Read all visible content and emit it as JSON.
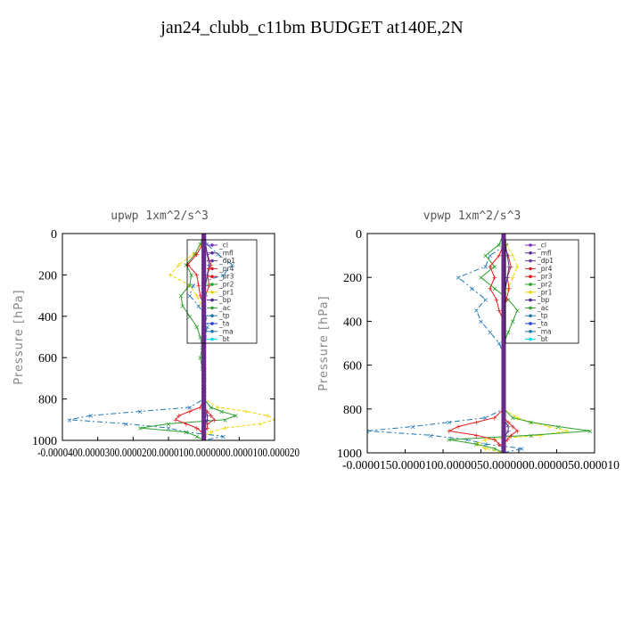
{
  "title": "jan24_clubb_c11bm  BUDGET at140E,2N",
  "chart_data": [
    {
      "type": "line",
      "title": "upwp   1xm^2/s^3",
      "ylabel": "Pressure [hPa]",
      "ylim": [
        1000,
        0
      ],
      "xlim": [
        -4e-05,
        2e-05
      ],
      "yticks": [
        "0",
        "200",
        "400",
        "600",
        "800",
        "1000"
      ],
      "xtick_text": "-0.0000400.0000300.0000200.0000100.0000000.0000100.000020",
      "grid": false,
      "legend_placement": "top-right",
      "legend": [
        "_cl",
        "_mfl",
        "_dp1",
        "_pr4",
        "_pr3",
        "_pr2",
        "_pr1",
        "_bp",
        "_ac",
        "_tp",
        "_ta",
        "_ma",
        "_bt"
      ],
      "pressure": [
        0,
        50,
        100,
        150,
        200,
        250,
        300,
        350,
        400,
        450,
        500,
        550,
        600,
        650,
        700,
        750,
        800,
        840,
        860,
        880,
        900,
        920,
        940,
        960,
        980,
        1000
      ],
      "series": [
        {
          "name": "_ma",
          "color": "#1f77b4",
          "values": [
            0,
            8e-07,
            4e-06,
            8e-06,
            5.5e-06,
            -3e-06,
            -4e-06,
            -1.5e-06,
            5e-07,
            1e-06,
            3e-07,
            0,
            0,
            0,
            0,
            0,
            0,
            -4e-06,
            -1.8e-05,
            -3.2e-05,
            -3.8e-05,
            -2.2e-05,
            -1e-05,
            -5e-06,
            5.5e-06,
            0
          ]
        },
        {
          "name": "_pr1",
          "color": "#e8d800",
          "values": [
            0,
            -5e-07,
            -3e-06,
            -7e-06,
            -9.5e-06,
            -4e-06,
            -2e-06,
            -5e-07,
            0,
            0,
            0,
            0,
            0,
            0,
            0,
            0,
            0,
            4e-06,
            1.2e-05,
            1.8e-05,
            2e-05,
            1.6e-05,
            6e-06,
            2e-06,
            0,
            0
          ]
        },
        {
          "name": "_pr2",
          "color": "#2ca02c",
          "values": [
            0,
            -1e-06,
            -2.5e-06,
            -5e-06,
            -3.5e-06,
            -4e-06,
            -6.5e-06,
            -6e-06,
            -4e-06,
            -2e-06,
            -1e-06,
            -5e-07,
            -1e-06,
            -5e-07,
            0,
            0,
            0,
            2e-06,
            5e-06,
            9e-06,
            6e-06,
            -1e-05,
            -1.8e-05,
            -5e-06,
            -2e-06,
            0
          ]
        },
        {
          "name": "_pr3",
          "color": "#e41a1c",
          "values": [
            0,
            -3e-07,
            -2e-06,
            -4.5e-06,
            -2e-06,
            -1.5e-06,
            -1e-06,
            0,
            0,
            0,
            0,
            0,
            0,
            0,
            0,
            0,
            0,
            -1e-06,
            -4e-06,
            -7e-06,
            -8e-06,
            -5e-06,
            -2e-06,
            -5e-07,
            0,
            0
          ]
        },
        {
          "name": "_pr4",
          "color": "#d62728",
          "values": [
            0,
            0,
            1e-06,
            2e-06,
            1e-06,
            1.5e-06,
            5e-07,
            0,
            0,
            0,
            0,
            0,
            0,
            0,
            0,
            0,
            0,
            0,
            1e-06,
            2e-06,
            3e-06,
            1e-06,
            1e-06,
            0,
            0,
            0
          ]
        },
        {
          "name": "_bp",
          "color": "#4b2a8c",
          "values": [
            0,
            5e-07,
            1e-06,
            1.5e-06,
            1e-06,
            5e-07,
            3e-07,
            0,
            0,
            0,
            0,
            0,
            0,
            0,
            0,
            0,
            0,
            0,
            5e-07,
            1e-06,
            1e-06,
            5e-07,
            0,
            0,
            0,
            0
          ]
        },
        {
          "name": "_cl",
          "color": "#7b2fbe",
          "values": [
            0,
            0,
            3e-07,
            0,
            0,
            0,
            0,
            0,
            0,
            0,
            0,
            0,
            0,
            0,
            0,
            0,
            0,
            0,
            0,
            0,
            0,
            0,
            0,
            0,
            0,
            0
          ]
        },
        {
          "name": "_bt",
          "color": "#00d8f0",
          "values": [
            0,
            0,
            0,
            0,
            0,
            0,
            0,
            0,
            0,
            0,
            0,
            0,
            0,
            0,
            0,
            0,
            0,
            0,
            0,
            0,
            0,
            0,
            0,
            0,
            0,
            0
          ]
        }
      ]
    },
    {
      "type": "line",
      "title": "vpwp   1xm^2/s^3",
      "ylabel": "Pressure [hPa]",
      "ylim": [
        1000,
        0
      ],
      "xlim": [
        -1.5e-05,
        1e-05
      ],
      "yticks": [
        "0",
        "200",
        "400",
        "600",
        "800",
        "1000"
      ],
      "xtick_text": "-0.0000150.0000100.0000050.0000000.0000050.000010",
      "grid": false,
      "legend_placement": "top-right",
      "legend": [
        "_cl",
        "_mfl",
        "_dp1",
        "_pr4",
        "_pr3",
        "_pr2",
        "_pr1",
        "_bp",
        "_ac",
        "_tp",
        "_ta",
        "_ma",
        "_bt"
      ],
      "pressure": [
        0,
        50,
        100,
        150,
        200,
        250,
        300,
        350,
        400,
        450,
        500,
        550,
        600,
        650,
        700,
        750,
        800,
        840,
        860,
        880,
        900,
        920,
        940,
        960,
        980,
        1000
      ],
      "series": [
        {
          "name": "_ma",
          "color": "#1f77b4",
          "values": [
            0,
            3e-07,
            -1.5e-06,
            -2e-06,
            -5e-06,
            -3.5e-06,
            -2e-06,
            -3e-06,
            -2.5e-06,
            -1.5e-06,
            -5e-07,
            0,
            0,
            0,
            0,
            0,
            0,
            -2e-06,
            -6e-06,
            -1e-05,
            -1.5e-05,
            -8e-06,
            -4e-06,
            -2e-06,
            2e-06,
            0
          ]
        },
        {
          "name": "_pr1",
          "color": "#e8d800",
          "values": [
            0,
            3e-07,
            1e-06,
            1.5e-06,
            1e-06,
            5e-07,
            0,
            0,
            0,
            0,
            0,
            0,
            0,
            0,
            0,
            0,
            0,
            1.5e-06,
            3e-06,
            5e-06,
            7e-06,
            4e-06,
            -2e-06,
            -3e-06,
            -2e-06,
            0
          ]
        },
        {
          "name": "_pr2",
          "color": "#2ca02c",
          "values": [
            0,
            -5e-07,
            -2e-06,
            -1e-06,
            -2.5e-06,
            -1e-06,
            5e-07,
            1.5e-06,
            1e-06,
            5e-07,
            0,
            0,
            0,
            0,
            0,
            0,
            0,
            1e-06,
            3e-06,
            6e-06,
            9.5e-06,
            3e-06,
            -6e-06,
            -3e-06,
            -1e-06,
            0
          ]
        },
        {
          "name": "_pr3",
          "color": "#e41a1c",
          "values": [
            0,
            0,
            -5e-07,
            -1.5e-06,
            -1e-06,
            -1.5e-06,
            -8e-07,
            -5e-07,
            0,
            0,
            0,
            0,
            0,
            0,
            0,
            0,
            0,
            -1e-06,
            -3e-06,
            -5e-06,
            -6e-06,
            -3e-06,
            -1e-06,
            -5e-07,
            0,
            0
          ]
        },
        {
          "name": "_pr4",
          "color": "#d62728",
          "values": [
            0,
            0,
            5e-07,
            8e-07,
            4e-07,
            6e-07,
            3e-07,
            0,
            0,
            0,
            0,
            0,
            0,
            0,
            0,
            0,
            0,
            0,
            5e-07,
            1e-06,
            1.5e-06,
            8e-07,
            4e-07,
            0,
            0,
            0
          ]
        },
        {
          "name": "_bp",
          "color": "#4b2a8c",
          "values": [
            0,
            2e-07,
            4e-07,
            6e-07,
            4e-07,
            2e-07,
            0,
            0,
            0,
            0,
            0,
            0,
            0,
            0,
            0,
            0,
            0,
            0,
            2e-07,
            5e-07,
            5e-07,
            2e-07,
            0,
            0,
            0,
            0
          ]
        },
        {
          "name": "_cl",
          "color": "#7b2fbe",
          "values": [
            0,
            0,
            0,
            0,
            0,
            0,
            0,
            0,
            0,
            0,
            0,
            0,
            0,
            0,
            0,
            0,
            0,
            0,
            0,
            0,
            0,
            0,
            0,
            0,
            0,
            0
          ]
        },
        {
          "name": "_bt",
          "color": "#00d8f0",
          "values": [
            0,
            0,
            0,
            0,
            0,
            0,
            0,
            0,
            0,
            0,
            0,
            0,
            0,
            0,
            0,
            0,
            0,
            0,
            0,
            0,
            0,
            0,
            0,
            0,
            0,
            0
          ]
        }
      ]
    }
  ],
  "colors": {
    "_cl": "#7b2fbe",
    "_mfl": "#5a2a9a",
    "_dp1": "#6a3aa8",
    "_pr4": "#d62728",
    "_pr3": "#e41a1c",
    "_pr2": "#2ca02c",
    "_pr1": "#e8d800",
    "_bp": "#4b2a8c",
    "_ac": "#2ca02c",
    "_tp": "#1f77b4",
    "_ta": "#1f3fd4",
    "_ma": "#1f77b4",
    "_bt": "#00d8f0"
  }
}
